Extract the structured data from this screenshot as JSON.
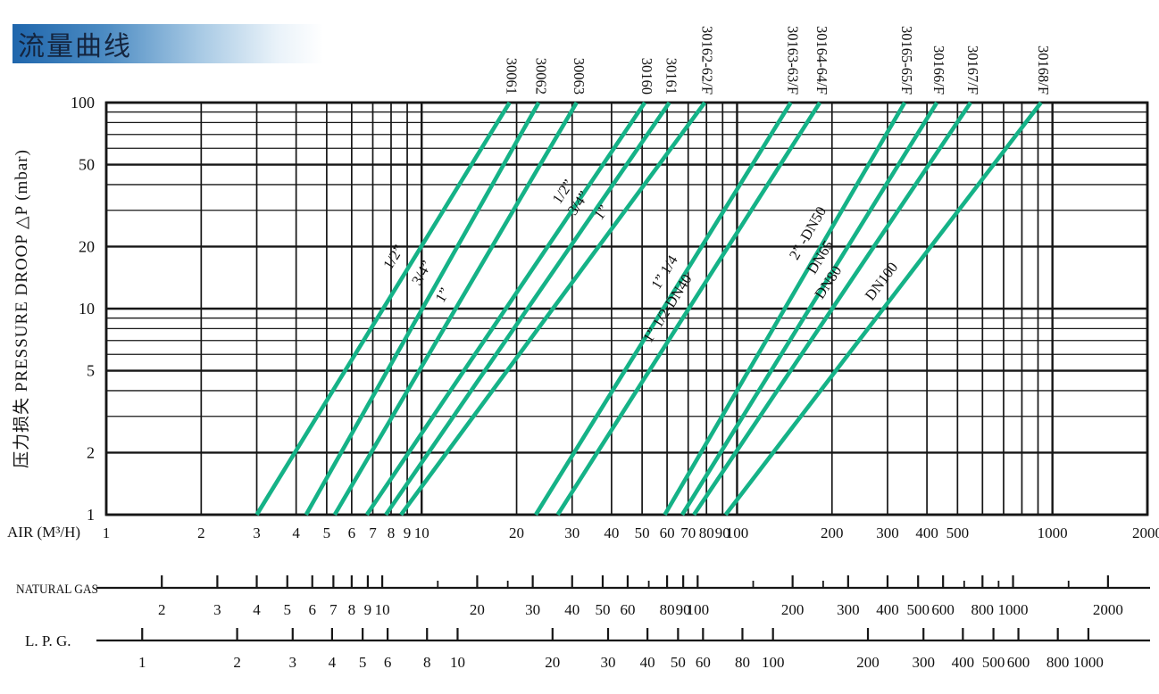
{
  "banner": {
    "title": "流量曲线",
    "gradient_start": "#1f66ac",
    "gradient_end": "#ffffff",
    "text_color": "#14253f"
  },
  "y_axis": {
    "title": "压力损失 PRESSURE DROOP △P (mbar)",
    "ticks": [
      100,
      50,
      20,
      10,
      5,
      2,
      1
    ]
  },
  "x_axis": {
    "title": "AIR (M³/H)",
    "ticks": [
      1,
      2,
      3,
      4,
      5,
      6,
      7,
      8,
      9,
      10,
      20,
      30,
      40,
      50,
      60,
      70,
      80,
      90,
      100,
      200,
      300,
      400,
      500,
      1000,
      2000
    ]
  },
  "chart_data": {
    "type": "line",
    "x_scale": "log",
    "y_scale": "log",
    "xlim": [
      1,
      2000
    ],
    "ylim": [
      1,
      100
    ],
    "xlabel": "AIR (M³/H)",
    "ylabel": "压力损失 PRESSURE DROOP △P (mbar)",
    "grid": "log-decade-grid",
    "line_color": "#15b287",
    "grid_color": "#161616",
    "series": [
      {
        "model": "30061",
        "size": "1/2”",
        "points": [
          [
            3.0,
            1
          ],
          [
            19,
            100
          ]
        ],
        "size_label_dp": 16
      },
      {
        "model": "30062",
        "size": "3/4”",
        "points": [
          [
            4.3,
            1
          ],
          [
            23.5,
            100
          ]
        ],
        "size_label_dp": 13.5
      },
      {
        "model": "30063",
        "size": "1”",
        "points": [
          [
            5.3,
            1
          ],
          [
            31,
            100
          ]
        ],
        "size_label_dp": 10.5
      },
      {
        "model": "30160",
        "size": "1/2”",
        "points": [
          [
            6.7,
            1
          ],
          [
            51,
            100
          ]
        ],
        "size_label_dp": 33
      },
      {
        "model": "30161",
        "size": "3/4”",
        "points": [
          [
            7.7,
            1
          ],
          [
            61,
            100
          ]
        ],
        "size_label_dp": 29
      },
      {
        "model": "30162-62/F",
        "size": "1”",
        "points": [
          [
            8.6,
            1
          ],
          [
            79,
            100
          ]
        ],
        "size_label_dp": 26
      },
      {
        "model": "30163-63/F",
        "size": "1” 1/4",
        "points": [
          [
            23,
            1
          ],
          [
            148,
            100
          ]
        ],
        "size_label_dp": 13.5
      },
      {
        "model": "30164-64/F",
        "size": "1” 1/2-DN40",
        "points": [
          [
            27,
            1
          ],
          [
            183,
            100
          ]
        ],
        "size_label_dp": 9
      },
      {
        "model": "30165-65/F",
        "size": "2” -DN50",
        "points": [
          [
            59,
            1
          ],
          [
            340,
            100
          ]
        ],
        "size_label_dp": 21
      },
      {
        "model": "30166/F",
        "size": "DN65",
        "points": [
          [
            67,
            1
          ],
          [
            430,
            100
          ]
        ],
        "size_label_dp": 16
      },
      {
        "model": "30167/F",
        "size": "DN80",
        "points": [
          [
            73,
            1
          ],
          [
            550,
            100
          ]
        ],
        "size_label_dp": 12
      },
      {
        "model": "30168/F",
        "size": "DN100",
        "points": [
          [
            92,
            1
          ],
          [
            920,
            100
          ]
        ],
        "size_label_dp": 12
      }
    ]
  },
  "gas_scale": {
    "label": "NATURAL GAS",
    "air_equiv_factor": 0.75,
    "labeled_ticks": [
      2,
      3,
      4,
      5,
      6,
      7,
      8,
      9,
      10,
      20,
      30,
      40,
      50,
      60,
      80,
      90,
      100,
      200,
      300,
      400,
      500,
      600,
      800,
      1000,
      2000
    ],
    "minor_ticks": [
      15,
      25,
      70,
      150,
      250,
      700,
      900,
      1500
    ]
  },
  "lpg_scale": {
    "label": "L. P. G.",
    "air_equiv_factor": 1.3,
    "labeled_ticks": [
      1,
      2,
      3,
      4,
      5,
      6,
      8,
      10,
      20,
      30,
      40,
      50,
      60,
      80,
      100,
      200,
      300,
      400,
      500,
      600,
      800,
      1000
    ]
  }
}
